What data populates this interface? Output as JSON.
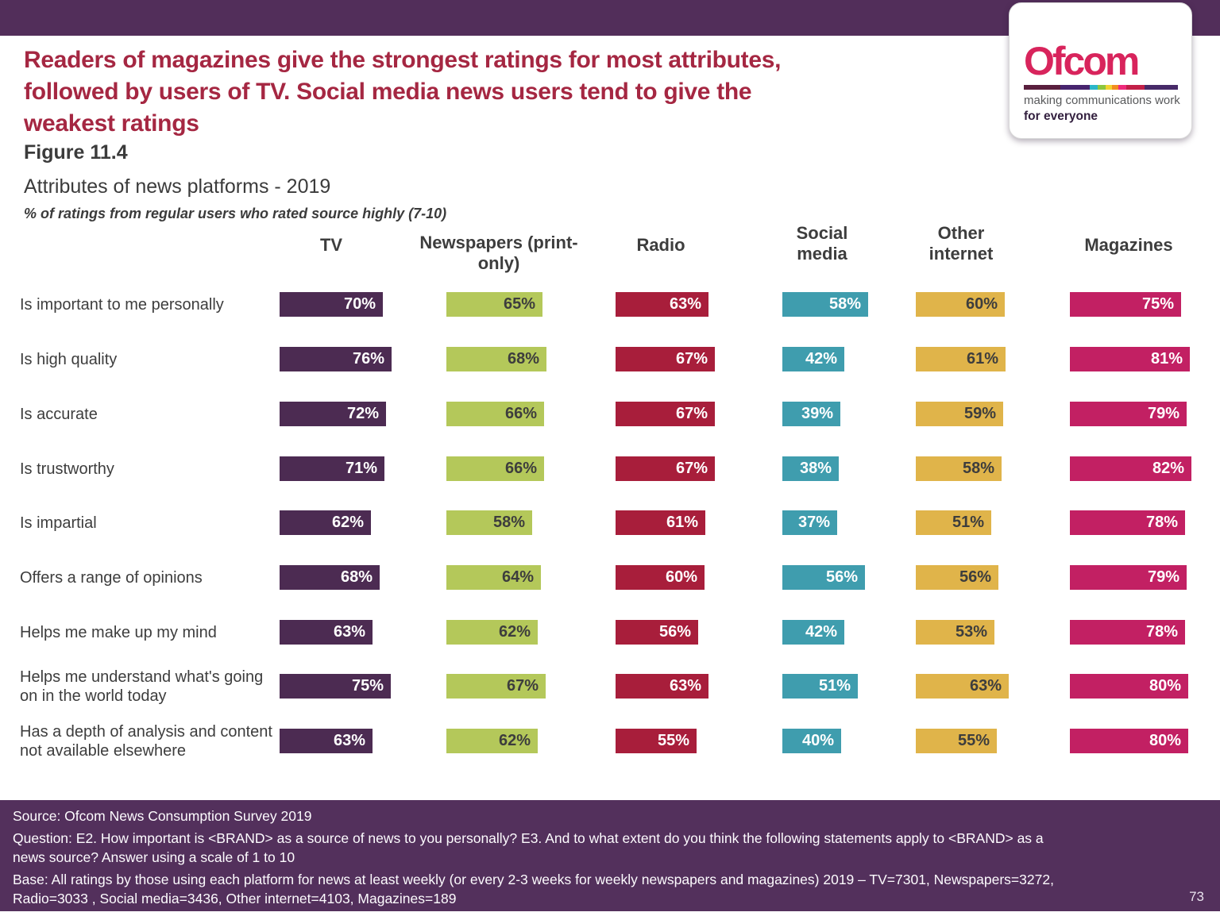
{
  "slide": {
    "title_lines": [
      "Readers of magazines give the strongest ratings for most attributes,",
      "followed by users of TV.  Social media news users tend to give the",
      "weakest ratings"
    ],
    "figure_label": "Figure 11.4",
    "chart_title": "Attributes of news platforms - 2019",
    "chart_note": "% of ratings from regular users who rated source highly (7-10)",
    "page_number": "73",
    "title_color": "#a52742",
    "band_color": "#522e5a",
    "footer_color": "#53305c"
  },
  "logo": {
    "wordmark": "Ofcom",
    "wordmark_color": "#d8245c",
    "tagline_line1": "making communications work",
    "tagline_line2": "for everyone",
    "stripe_colors": [
      "#5a1f3e",
      "#47246e",
      "#2bb6c9",
      "#8cc63e",
      "#f2d230",
      "#f28d20",
      "#ee2a7b",
      "#c22048",
      "#472a68"
    ]
  },
  "footer": {
    "source": "Source: Ofcom News Consumption Survey 2019",
    "question_lines": [
      "Question: E2. How important is <BRAND> as a source of news to you personally?  E3. And to what extent do you think the following statements apply to <BRAND> as a",
      "news source? Answer using a scale of 1 to 10"
    ],
    "base_lines": [
      "Base: All ratings by those using each platform for news at least weekly (or every 2-3 weeks for weekly newspapers and magazines) 2019 – TV=7301, Newspapers=3272,",
      "Radio=3033 , Social media=3436, Other internet=4103, Magazines=189"
    ]
  },
  "chart_data": {
    "type": "bar",
    "orientation": "horizontal",
    "title": "Attributes of news platforms - 2019",
    "subtitle": "% of ratings from regular users who rated source highly (7-10)",
    "value_suffix": "%",
    "xlim": [
      0,
      100
    ],
    "grid": false,
    "legend": "column-headers",
    "categories": [
      "Is important to me personally",
      "Is high quality",
      "Is accurate",
      "Is trustworthy",
      "Is impartial",
      "Offers a range of opinions",
      "Helps me make up my mind",
      "Helps me understand what's going on in the world today",
      "Has a depth of analysis and content not available elsewhere"
    ],
    "series": [
      {
        "name": "TV",
        "color": "#4c2b52",
        "label_color": "#ffffff",
        "values": [
          70,
          76,
          72,
          71,
          62,
          68,
          63,
          75,
          63
        ]
      },
      {
        "name": "Newspapers (print-only)",
        "color": "#b4c85a",
        "label_color": "#3d3d3d",
        "values": [
          65,
          68,
          66,
          66,
          58,
          64,
          62,
          67,
          62
        ]
      },
      {
        "name": "Radio",
        "color": "#a81e3b",
        "label_color": "#ffffff",
        "values": [
          63,
          67,
          67,
          67,
          61,
          60,
          56,
          63,
          55
        ]
      },
      {
        "name": "Social media",
        "color": "#3f9dae",
        "label_color": "#ffffff",
        "values": [
          58,
          42,
          39,
          38,
          37,
          56,
          42,
          51,
          40
        ]
      },
      {
        "name": "Other internet",
        "color": "#e0b44a",
        "label_color": "#3d3d3d",
        "values": [
          60,
          61,
          59,
          58,
          51,
          56,
          53,
          63,
          55
        ]
      },
      {
        "name": "Magazines",
        "color": "#c22063",
        "label_color": "#ffffff",
        "values": [
          75,
          81,
          79,
          82,
          78,
          79,
          78,
          80,
          80
        ]
      }
    ]
  }
}
